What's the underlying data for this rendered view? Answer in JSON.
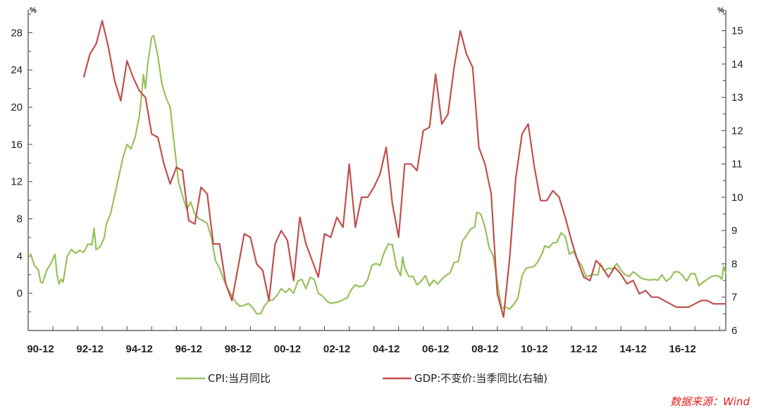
{
  "colors": {
    "cpi": "#98c15c",
    "gdp": "#c0504d",
    "axis": "#444444",
    "source": "#e0211b"
  },
  "legend": {
    "cpi_label": "CPI:当月同比",
    "gdp_label": "GDP:不变价:当季同比(右轴)"
  },
  "source": "数据来源：Wind",
  "chart_data": {
    "type": "line",
    "title": "",
    "left_axis": {
      "unit": "%",
      "ylim": [
        -4,
        30
      ],
      "ticks": [
        0,
        4,
        8,
        12,
        16,
        20,
        24,
        28
      ]
    },
    "right_axis": {
      "unit": "%",
      "ylim": [
        6,
        15.5
      ],
      "ticks": [
        6,
        7,
        8,
        9,
        10,
        11,
        12,
        13,
        14,
        15
      ]
    },
    "x_axis": {
      "tick_labels": [
        "90-12",
        "92-12",
        "94-12",
        "96-12",
        "98-12",
        "00-12",
        "02-12",
        "04-12",
        "06-12",
        "08-12",
        "10-12",
        "12-12",
        "14-12",
        "16-12"
      ],
      "xlim": [
        "1989-12",
        "2018-03"
      ]
    },
    "series": [
      {
        "name": "CPI:当月同比",
        "axis": "left",
        "points": [
          [
            "1990-01",
            4.3
          ],
          [
            "1990-03",
            3.0
          ],
          [
            "1990-05",
            2.5
          ],
          [
            "1990-06",
            1.2
          ],
          [
            "1990-07",
            1.1
          ],
          [
            "1990-09",
            2.5
          ],
          [
            "1990-11",
            3.2
          ],
          [
            "1991-01",
            4.2
          ],
          [
            "1991-02",
            2.0
          ],
          [
            "1991-03",
            1.0
          ],
          [
            "1991-04",
            1.5
          ],
          [
            "1991-05",
            1.2
          ],
          [
            "1991-07",
            4.0
          ],
          [
            "1991-09",
            4.7
          ],
          [
            "1991-11",
            4.3
          ],
          [
            "1992-01",
            4.6
          ],
          [
            "1992-03",
            4.4
          ],
          [
            "1992-05",
            5.3
          ],
          [
            "1992-07",
            5.2
          ],
          [
            "1992-08",
            7.0
          ],
          [
            "1992-09",
            4.7
          ],
          [
            "1992-11",
            5.0
          ],
          [
            "1993-01",
            6.0
          ],
          [
            "1993-02",
            7.5
          ],
          [
            "1993-04",
            8.5
          ],
          [
            "1993-06",
            10.5
          ],
          [
            "1993-08",
            12.5
          ],
          [
            "1993-10",
            14.5
          ],
          [
            "1993-12",
            16.0
          ],
          [
            "1994-02",
            15.5
          ],
          [
            "1994-04",
            16.8
          ],
          [
            "1994-06",
            19.0
          ],
          [
            "1994-07",
            21.0
          ],
          [
            "1994-08",
            23.5
          ],
          [
            "1994-09",
            22.0
          ],
          [
            "1994-10",
            24.5
          ],
          [
            "1994-12",
            27.5
          ],
          [
            "1995-01",
            27.7
          ],
          [
            "1995-03",
            25.5
          ],
          [
            "1995-05",
            22.5
          ],
          [
            "1995-07",
            21.0
          ],
          [
            "1995-09",
            20.0
          ],
          [
            "1995-11",
            16.0
          ],
          [
            "1996-01",
            12.0
          ],
          [
            "1996-03",
            10.5
          ],
          [
            "1996-05",
            9.0
          ],
          [
            "1996-07",
            9.8
          ],
          [
            "1996-09",
            8.5
          ],
          [
            "1996-11",
            8.0
          ],
          [
            "1997-01",
            7.8
          ],
          [
            "1997-03",
            7.5
          ],
          [
            "1997-05",
            6.0
          ],
          [
            "1997-07",
            3.5
          ],
          [
            "1997-09",
            2.7
          ],
          [
            "1997-11",
            1.5
          ],
          [
            "1998-01",
            0.5
          ],
          [
            "1998-03",
            -0.3
          ],
          [
            "1998-05",
            -1.0
          ],
          [
            "1998-07",
            -1.4
          ],
          [
            "1998-09",
            -1.3
          ],
          [
            "1998-11",
            -1.1
          ],
          [
            "1999-01",
            -1.5
          ],
          [
            "1999-03",
            -2.2
          ],
          [
            "1999-05",
            -2.2
          ],
          [
            "1999-07",
            -1.3
          ],
          [
            "1999-09",
            -0.8
          ],
          [
            "1999-11",
            -0.7
          ],
          [
            "2000-01",
            -0.2
          ],
          [
            "2000-03",
            0.5
          ],
          [
            "2000-05",
            0.1
          ],
          [
            "2000-07",
            0.5
          ],
          [
            "2000-09",
            0.0
          ],
          [
            "2000-11",
            1.3
          ],
          [
            "2001-01",
            1.5
          ],
          [
            "2001-03",
            0.5
          ],
          [
            "2001-05",
            1.7
          ],
          [
            "2001-07",
            1.5
          ],
          [
            "2001-09",
            0.0
          ],
          [
            "2001-11",
            -0.3
          ],
          [
            "2002-01",
            -0.8
          ],
          [
            "2002-03",
            -1.1
          ],
          [
            "2002-05",
            -1.0
          ],
          [
            "2002-07",
            -0.9
          ],
          [
            "2002-09",
            -0.7
          ],
          [
            "2002-11",
            -0.5
          ],
          [
            "2003-01",
            0.4
          ],
          [
            "2003-03",
            0.9
          ],
          [
            "2003-05",
            0.7
          ],
          [
            "2003-07",
            0.8
          ],
          [
            "2003-09",
            1.5
          ],
          [
            "2003-11",
            3.0
          ],
          [
            "2004-01",
            3.2
          ],
          [
            "2004-03",
            3.0
          ],
          [
            "2004-05",
            4.4
          ],
          [
            "2004-07",
            5.3
          ],
          [
            "2004-09",
            5.2
          ],
          [
            "2004-11",
            2.8
          ],
          [
            "2005-01",
            1.9
          ],
          [
            "2005-02",
            3.9
          ],
          [
            "2005-03",
            2.7
          ],
          [
            "2005-05",
            1.8
          ],
          [
            "2005-07",
            1.8
          ],
          [
            "2005-09",
            0.9
          ],
          [
            "2005-11",
            1.3
          ],
          [
            "2006-01",
            1.9
          ],
          [
            "2006-03",
            0.8
          ],
          [
            "2006-05",
            1.4
          ],
          [
            "2006-07",
            1.0
          ],
          [
            "2006-09",
            1.5
          ],
          [
            "2006-11",
            1.9
          ],
          [
            "2007-01",
            2.2
          ],
          [
            "2007-03",
            3.3
          ],
          [
            "2007-05",
            3.4
          ],
          [
            "2007-07",
            5.6
          ],
          [
            "2007-09",
            6.2
          ],
          [
            "2007-11",
            6.9
          ],
          [
            "2008-01",
            7.1
          ],
          [
            "2008-02",
            8.7
          ],
          [
            "2008-04",
            8.5
          ],
          [
            "2008-06",
            7.1
          ],
          [
            "2008-08",
            4.9
          ],
          [
            "2008-10",
            4.0
          ],
          [
            "2008-12",
            1.2
          ],
          [
            "2009-02",
            -1.6
          ],
          [
            "2009-04",
            -1.5
          ],
          [
            "2009-06",
            -1.7
          ],
          [
            "2009-08",
            -1.2
          ],
          [
            "2009-10",
            -0.5
          ],
          [
            "2009-12",
            1.9
          ],
          [
            "2010-02",
            2.7
          ],
          [
            "2010-04",
            2.8
          ],
          [
            "2010-06",
            2.9
          ],
          [
            "2010-08",
            3.5
          ],
          [
            "2010-10",
            4.4
          ],
          [
            "2010-11",
            5.1
          ],
          [
            "2011-01",
            4.9
          ],
          [
            "2011-03",
            5.4
          ],
          [
            "2011-05",
            5.5
          ],
          [
            "2011-07",
            6.5
          ],
          [
            "2011-09",
            6.1
          ],
          [
            "2011-11",
            4.2
          ],
          [
            "2012-01",
            4.5
          ],
          [
            "2012-03",
            3.6
          ],
          [
            "2012-05",
            3.0
          ],
          [
            "2012-07",
            1.8
          ],
          [
            "2012-09",
            1.9
          ],
          [
            "2012-11",
            2.0
          ],
          [
            "2013-01",
            2.0
          ],
          [
            "2013-02",
            3.2
          ],
          [
            "2013-04",
            2.4
          ],
          [
            "2013-06",
            2.7
          ],
          [
            "2013-08",
            2.6
          ],
          [
            "2013-10",
            3.2
          ],
          [
            "2013-12",
            2.5
          ],
          [
            "2014-02",
            2.0
          ],
          [
            "2014-04",
            1.8
          ],
          [
            "2014-06",
            2.3
          ],
          [
            "2014-08",
            2.0
          ],
          [
            "2014-10",
            1.6
          ],
          [
            "2014-12",
            1.5
          ],
          [
            "2015-02",
            1.4
          ],
          [
            "2015-04",
            1.5
          ],
          [
            "2015-06",
            1.4
          ],
          [
            "2015-08",
            2.0
          ],
          [
            "2015-10",
            1.3
          ],
          [
            "2015-12",
            1.6
          ],
          [
            "2016-02",
            2.3
          ],
          [
            "2016-04",
            2.3
          ],
          [
            "2016-06",
            1.9
          ],
          [
            "2016-08",
            1.3
          ],
          [
            "2016-10",
            2.1
          ],
          [
            "2016-12",
            2.1
          ],
          [
            "2017-02",
            0.8
          ],
          [
            "2017-04",
            1.2
          ],
          [
            "2017-06",
            1.5
          ],
          [
            "2017-08",
            1.8
          ],
          [
            "2017-10",
            1.9
          ],
          [
            "2017-12",
            1.8
          ],
          [
            "2018-01",
            1.5
          ],
          [
            "2018-02",
            2.9
          ],
          [
            "2018-03",
            2.1
          ]
        ]
      },
      {
        "name": "GDP:不变价:当季同比(右轴)",
        "axis": "right",
        "points": [
          [
            "1992-03",
            13.6
          ],
          [
            "1992-06",
            14.3
          ],
          [
            "1992-09",
            14.6
          ],
          [
            "1992-12",
            15.3
          ],
          [
            "1993-03",
            14.5
          ],
          [
            "1993-06",
            13.5
          ],
          [
            "1993-09",
            12.9
          ],
          [
            "1993-12",
            14.1
          ],
          [
            "1994-03",
            13.6
          ],
          [
            "1994-06",
            13.2
          ],
          [
            "1994-09",
            13.0
          ],
          [
            "1994-12",
            11.9
          ],
          [
            "1995-03",
            11.8
          ],
          [
            "1995-06",
            11.0
          ],
          [
            "1995-09",
            10.4
          ],
          [
            "1995-12",
            10.9
          ],
          [
            "1996-03",
            10.8
          ],
          [
            "1996-06",
            9.3
          ],
          [
            "1996-09",
            9.2
          ],
          [
            "1996-12",
            10.3
          ],
          [
            "1997-03",
            10.1
          ],
          [
            "1997-06",
            8.6
          ],
          [
            "1997-09",
            8.6
          ],
          [
            "1997-12",
            7.4
          ],
          [
            "1998-03",
            6.9
          ],
          [
            "1998-06",
            7.9
          ],
          [
            "1998-09",
            8.9
          ],
          [
            "1998-12",
            8.8
          ],
          [
            "1999-03",
            8.0
          ],
          [
            "1999-06",
            7.8
          ],
          [
            "1999-09",
            6.9
          ],
          [
            "1999-12",
            8.6
          ],
          [
            "2000-03",
            9.0
          ],
          [
            "2000-06",
            8.7
          ],
          [
            "2000-09",
            7.5
          ],
          [
            "2000-12",
            9.4
          ],
          [
            "2001-03",
            8.6
          ],
          [
            "2001-06",
            8.1
          ],
          [
            "2001-09",
            7.6
          ],
          [
            "2001-12",
            8.9
          ],
          [
            "2002-03",
            8.8
          ],
          [
            "2002-06",
            9.4
          ],
          [
            "2002-09",
            9.1
          ],
          [
            "2002-12",
            11.0
          ],
          [
            "2003-03",
            9.1
          ],
          [
            "2003-06",
            10.0
          ],
          [
            "2003-09",
            10.0
          ],
          [
            "2003-12",
            10.3
          ],
          [
            "2004-03",
            10.7
          ],
          [
            "2004-06",
            11.5
          ],
          [
            "2004-09",
            9.8
          ],
          [
            "2004-12",
            8.8
          ],
          [
            "2005-03",
            11.0
          ],
          [
            "2005-06",
            11.0
          ],
          [
            "2005-09",
            10.8
          ],
          [
            "2005-12",
            12.0
          ],
          [
            "2006-03",
            12.1
          ],
          [
            "2006-06",
            13.7
          ],
          [
            "2006-09",
            12.2
          ],
          [
            "2006-12",
            12.5
          ],
          [
            "2007-03",
            13.9
          ],
          [
            "2007-06",
            15.0
          ],
          [
            "2007-09",
            14.3
          ],
          [
            "2007-12",
            13.9
          ],
          [
            "2008-03",
            11.5
          ],
          [
            "2008-06",
            11.0
          ],
          [
            "2008-09",
            10.1
          ],
          [
            "2008-12",
            7.1
          ],
          [
            "2009-03",
            6.4
          ],
          [
            "2009-06",
            8.2
          ],
          [
            "2009-09",
            10.6
          ],
          [
            "2009-12",
            11.9
          ],
          [
            "2010-03",
            12.2
          ],
          [
            "2010-06",
            10.9
          ],
          [
            "2010-09",
            9.9
          ],
          [
            "2010-12",
            9.9
          ],
          [
            "2011-03",
            10.2
          ],
          [
            "2011-06",
            10.0
          ],
          [
            "2011-09",
            9.4
          ],
          [
            "2011-12",
            8.7
          ],
          [
            "2012-03",
            8.1
          ],
          [
            "2012-06",
            7.6
          ],
          [
            "2012-09",
            7.5
          ],
          [
            "2012-12",
            8.1
          ],
          [
            "2013-03",
            7.9
          ],
          [
            "2013-06",
            7.6
          ],
          [
            "2013-09",
            7.9
          ],
          [
            "2013-12",
            7.7
          ],
          [
            "2014-03",
            7.4
          ],
          [
            "2014-06",
            7.5
          ],
          [
            "2014-09",
            7.1
          ],
          [
            "2014-12",
            7.2
          ],
          [
            "2015-03",
            7.0
          ],
          [
            "2015-06",
            7.0
          ],
          [
            "2015-09",
            6.9
          ],
          [
            "2015-12",
            6.8
          ],
          [
            "2016-03",
            6.7
          ],
          [
            "2016-06",
            6.7
          ],
          [
            "2016-09",
            6.7
          ],
          [
            "2016-12",
            6.8
          ],
          [
            "2017-03",
            6.9
          ],
          [
            "2017-06",
            6.9
          ],
          [
            "2017-09",
            6.8
          ],
          [
            "2017-12",
            6.8
          ],
          [
            "2018-03",
            6.8
          ]
        ]
      }
    ]
  }
}
